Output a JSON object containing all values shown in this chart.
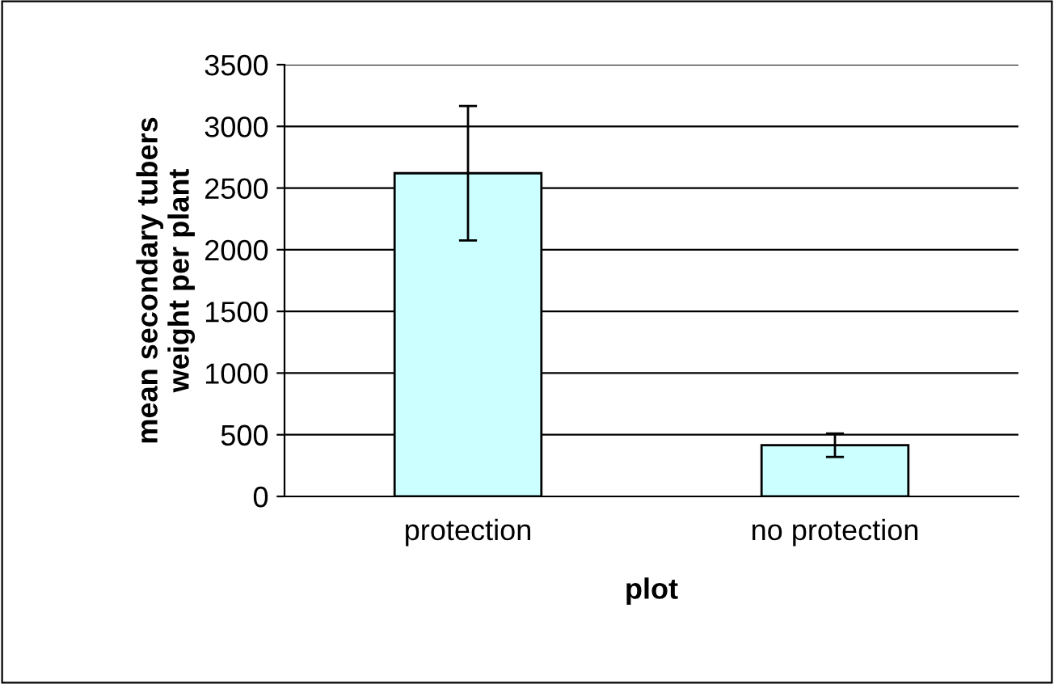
{
  "chart_data": {
    "type": "bar",
    "xlabel": "plot",
    "ylabel": "mean secondary tubers\nweight per plant",
    "categories": [
      "protection",
      "no protection"
    ],
    "values": [
      2620,
      415
    ],
    "errors": [
      545,
      95
    ],
    "color": "#ccffff",
    "ylim": [
      0,
      3500
    ],
    "yticks": [
      0,
      500,
      1000,
      1500,
      2000,
      2500,
      3000,
      3500
    ],
    "grid": "y",
    "legend": false
  }
}
